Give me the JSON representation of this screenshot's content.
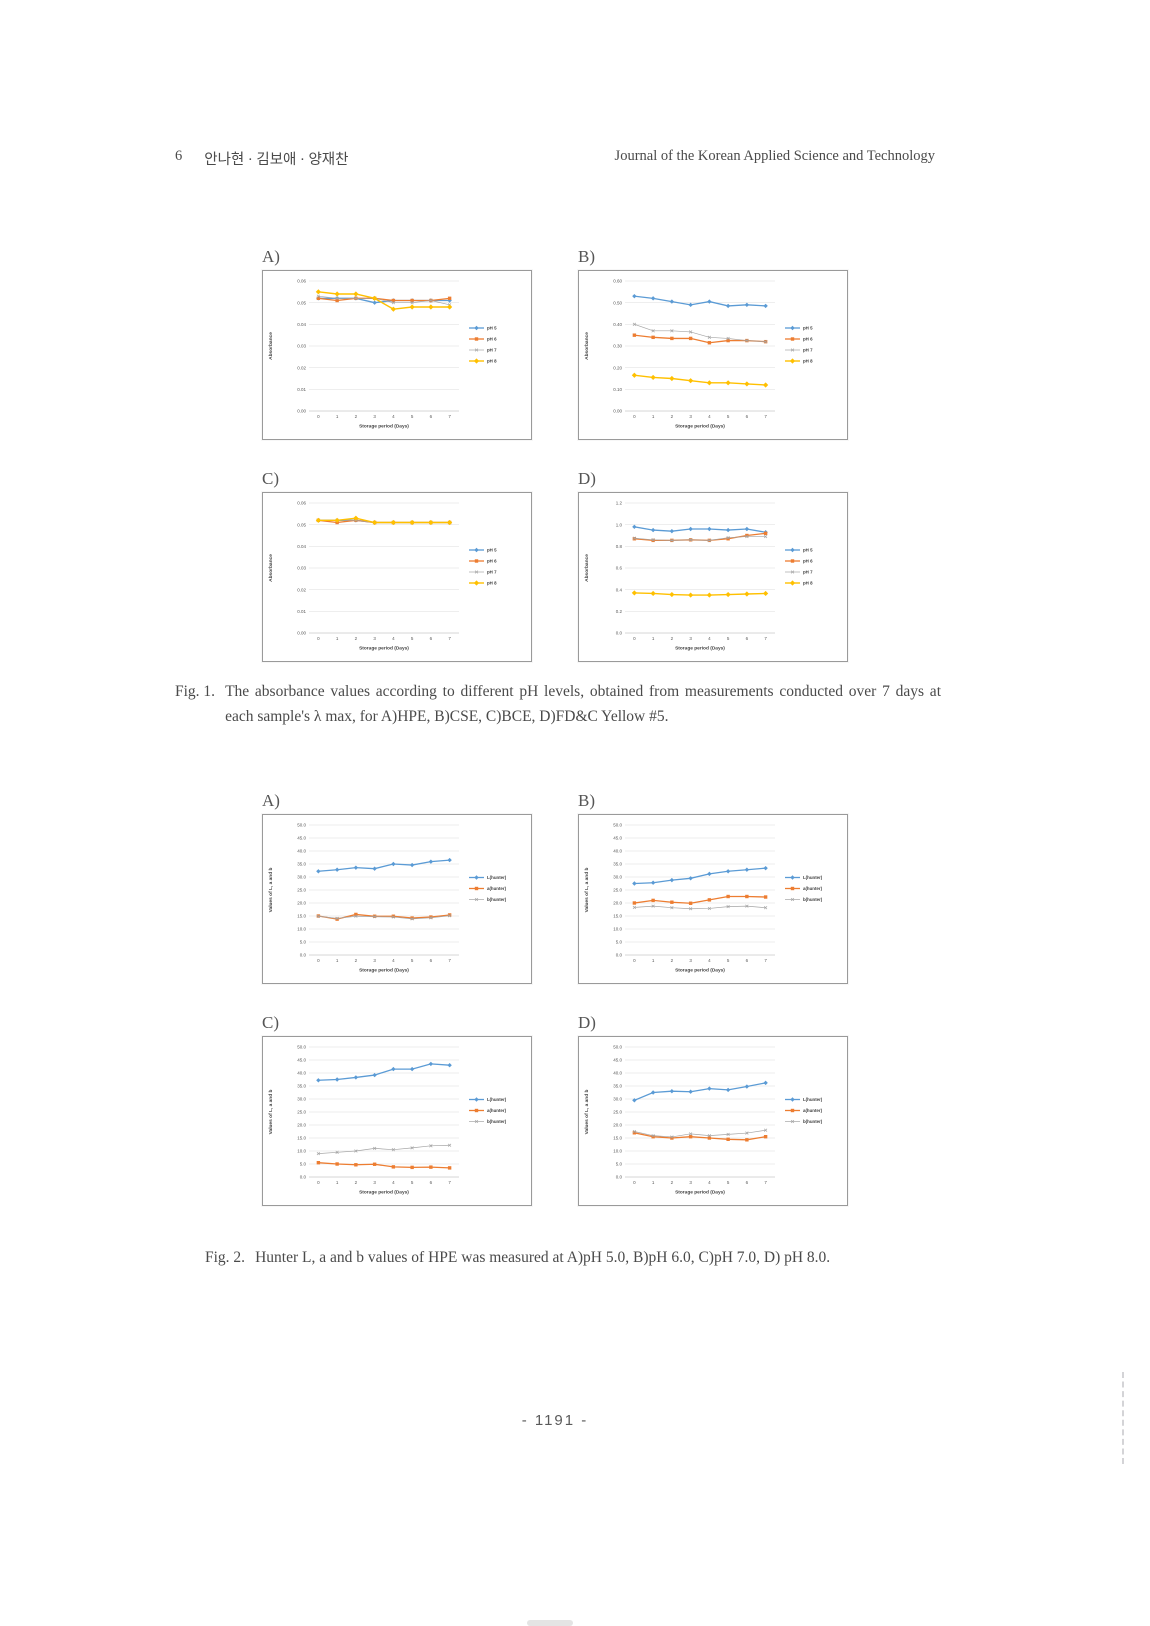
{
  "page": {
    "header": {
      "page_num": "6",
      "authors": "안나현 · 김보애 · 양재찬",
      "journal": "Journal of the Korean Applied Science and Technology"
    },
    "page_number": "- 1191 -"
  },
  "figure1": {
    "caption_label": "Fig. 1.",
    "caption_text": "The absorbance values according to different pH levels, obtained from measurements conducted over 7 days at each sample's λ max,  for A)HPE, B)CSE, C)BCE, D)FD&C Yellow #5."
  },
  "figure2": {
    "caption_label": "Fig. 2.",
    "caption_text": "Hunter L, a and b values of HPE was measured at A)pH 5.0, B)pH 6.0, C)pH 7.0, D) pH 8.0."
  },
  "chart_data": [
    {
      "id": "fig1-a",
      "panel_label": "A)",
      "type": "line",
      "x": [
        0,
        1,
        2,
        3,
        4,
        5,
        6,
        7
      ],
      "xlabel": "Storage period (Days)",
      "ylabel": "Absorbance",
      "ylim": [
        0,
        0.06
      ],
      "ytick_step": 0.01,
      "ytick_decimals": 2,
      "grid": true,
      "legend_position": "right",
      "series": [
        {
          "name": "pH 5",
          "color": "#5B9BD5",
          "marker": "diamond",
          "stroke_width": 1.3,
          "values": [
            0.052,
            0.052,
            0.052,
            0.05,
            0.051,
            0.051,
            0.051,
            0.051
          ]
        },
        {
          "name": "pH 6",
          "color": "#ED7D31",
          "marker": "square",
          "stroke_width": 1.3,
          "values": [
            0.052,
            0.051,
            0.052,
            0.052,
            0.051,
            0.051,
            0.051,
            0.052
          ]
        },
        {
          "name": "pH 7",
          "color": "#A5A5A5",
          "marker": "x",
          "stroke_width": 0.7,
          "values": [
            0.053,
            0.052,
            0.052,
            0.052,
            0.05,
            0.05,
            0.051,
            0.049
          ]
        },
        {
          "name": "pH 8",
          "color": "#FFC000",
          "marker": "diamond-lg",
          "stroke_width": 1.4,
          "values": [
            0.055,
            0.054,
            0.054,
            0.052,
            0.047,
            0.048,
            0.048,
            0.048
          ]
        }
      ]
    },
    {
      "id": "fig1-b",
      "panel_label": "B)",
      "type": "line",
      "x": [
        0,
        1,
        2,
        3,
        4,
        5,
        6,
        7
      ],
      "xlabel": "Storage period (Days)",
      "ylabel": "Absorbance",
      "ylim": [
        0,
        0.6
      ],
      "ytick_step": 0.1,
      "ytick_decimals": 2,
      "grid": true,
      "legend_position": "right",
      "series": [
        {
          "name": "pH 5",
          "color": "#5B9BD5",
          "marker": "diamond",
          "stroke_width": 1.3,
          "values": [
            0.53,
            0.52,
            0.505,
            0.49,
            0.505,
            0.485,
            0.49,
            0.485
          ]
        },
        {
          "name": "pH 6",
          "color": "#ED7D31",
          "marker": "square",
          "stroke_width": 1.3,
          "values": [
            0.35,
            0.34,
            0.335,
            0.335,
            0.315,
            0.325,
            0.325,
            0.32
          ]
        },
        {
          "name": "pH 7",
          "color": "#A5A5A5",
          "marker": "x",
          "stroke_width": 0.7,
          "values": [
            0.4,
            0.37,
            0.37,
            0.365,
            0.34,
            0.335,
            0.325,
            0.32
          ]
        },
        {
          "name": "pH 8",
          "color": "#FFC000",
          "marker": "diamond-lg",
          "stroke_width": 1.4,
          "values": [
            0.165,
            0.155,
            0.15,
            0.14,
            0.13,
            0.13,
            0.125,
            0.12
          ]
        }
      ]
    },
    {
      "id": "fig1-c",
      "panel_label": "C)",
      "type": "line",
      "x": [
        0,
        1,
        2,
        3,
        4,
        5,
        6,
        7
      ],
      "xlabel": "Storage period (Days)",
      "ylabel": "Absorbance",
      "ylim": [
        0,
        0.06
      ],
      "ytick_step": 0.01,
      "ytick_decimals": 2,
      "grid": true,
      "legend_position": "right",
      "series": [
        {
          "name": "pH 5",
          "color": "#5B9BD5",
          "marker": "diamond",
          "stroke_width": 1.3,
          "values": [
            0.052,
            0.052,
            0.052,
            0.051,
            0.051,
            0.051,
            0.051,
            0.051
          ]
        },
        {
          "name": "pH 6",
          "color": "#ED7D31",
          "marker": "square",
          "stroke_width": 1.3,
          "values": [
            0.052,
            0.051,
            0.052,
            0.051,
            0.051,
            0.051,
            0.051,
            0.051
          ]
        },
        {
          "name": "pH 7",
          "color": "#A5A5A5",
          "marker": "x",
          "stroke_width": 0.7,
          "values": [
            0.052,
            0.052,
            0.052,
            0.051,
            0.051,
            0.051,
            0.051,
            0.051
          ]
        },
        {
          "name": "pH 8",
          "color": "#FFC000",
          "marker": "diamond-lg",
          "stroke_width": 1.4,
          "values": [
            0.052,
            0.052,
            0.053,
            0.051,
            0.051,
            0.051,
            0.051,
            0.051
          ]
        }
      ]
    },
    {
      "id": "fig1-d",
      "panel_label": "D)",
      "type": "line",
      "x": [
        0,
        1,
        2,
        3,
        4,
        5,
        6,
        7
      ],
      "xlabel": "Storage period (Days)",
      "ylabel": "Absorbance",
      "ylim": [
        0,
        1.2
      ],
      "ytick_step": 0.2,
      "ytick_decimals": 1,
      "grid": true,
      "legend_position": "right",
      "series": [
        {
          "name": "pH 5",
          "color": "#5B9BD5",
          "marker": "diamond",
          "stroke_width": 1.3,
          "values": [
            0.98,
            0.95,
            0.94,
            0.96,
            0.96,
            0.95,
            0.96,
            0.93
          ]
        },
        {
          "name": "pH 6",
          "color": "#ED7D31",
          "marker": "square",
          "stroke_width": 1.3,
          "values": [
            0.87,
            0.855,
            0.855,
            0.86,
            0.855,
            0.87,
            0.9,
            0.92
          ]
        },
        {
          "name": "pH 7",
          "color": "#A5A5A5",
          "marker": "x",
          "stroke_width": 0.7,
          "values": [
            0.875,
            0.86,
            0.855,
            0.86,
            0.855,
            0.88,
            0.89,
            0.89
          ]
        },
        {
          "name": "pH 8",
          "color": "#FFC000",
          "marker": "diamond-lg",
          "stroke_width": 1.4,
          "values": [
            0.37,
            0.365,
            0.355,
            0.35,
            0.35,
            0.355,
            0.36,
            0.365
          ]
        }
      ]
    },
    {
      "id": "fig2-a",
      "panel_label": "A)",
      "type": "line",
      "x": [
        0,
        1,
        2,
        3,
        4,
        5,
        6,
        7
      ],
      "xlabel": "Storage period (Days)",
      "ylabel": "Values of L, a and b",
      "ylim": [
        0,
        50
      ],
      "ytick_step": 5,
      "ytick_decimals": 1,
      "grid": true,
      "legend_position": "right",
      "series": [
        {
          "name": "L(hunter)",
          "color": "#5B9BD5",
          "marker": "diamond",
          "stroke_width": 1.3,
          "values": [
            32.2,
            32.8,
            33.6,
            33.2,
            35.0,
            34.6,
            35.9,
            36.5
          ]
        },
        {
          "name": "a(hunter)",
          "color": "#ED7D31",
          "marker": "square",
          "stroke_width": 1.3,
          "values": [
            15.0,
            13.8,
            15.6,
            14.9,
            14.9,
            14.2,
            14.6,
            15.4
          ]
        },
        {
          "name": "b(hunter)",
          "color": "#A5A5A5",
          "marker": "x",
          "stroke_width": 0.7,
          "values": [
            14.9,
            14.1,
            14.9,
            14.7,
            14.6,
            13.9,
            14.3,
            15.1
          ]
        }
      ]
    },
    {
      "id": "fig2-b",
      "panel_label": "B)",
      "type": "line",
      "x": [
        0,
        1,
        2,
        3,
        4,
        5,
        6,
        7
      ],
      "xlabel": "Storage period (Days)",
      "ylabel": "Values of L, a and b",
      "ylim": [
        0,
        50
      ],
      "ytick_step": 5,
      "ytick_decimals": 1,
      "grid": true,
      "legend_position": "right",
      "series": [
        {
          "name": "L(hunter)",
          "color": "#5B9BD5",
          "marker": "diamond",
          "stroke_width": 1.3,
          "values": [
            27.5,
            27.8,
            28.8,
            29.5,
            31.2,
            32.2,
            32.8,
            33.4
          ]
        },
        {
          "name": "a(hunter)",
          "color": "#ED7D31",
          "marker": "square",
          "stroke_width": 1.3,
          "values": [
            20.0,
            21.0,
            20.3,
            19.9,
            21.2,
            22.5,
            22.5,
            22.3
          ]
        },
        {
          "name": "b(hunter)",
          "color": "#A5A5A5",
          "marker": "x",
          "stroke_width": 0.7,
          "values": [
            18.3,
            18.8,
            18.2,
            17.8,
            17.9,
            18.6,
            18.8,
            18.2
          ]
        }
      ]
    },
    {
      "id": "fig2-c",
      "panel_label": "C)",
      "type": "line",
      "x": [
        0,
        1,
        2,
        3,
        4,
        5,
        6,
        7
      ],
      "xlabel": "Storage period (Days)",
      "ylabel": "Values of L, a and b",
      "ylim": [
        0,
        50
      ],
      "ytick_step": 5,
      "ytick_decimals": 1,
      "grid": true,
      "legend_position": "right",
      "series": [
        {
          "name": "L(hunter)",
          "color": "#5B9BD5",
          "marker": "diamond",
          "stroke_width": 1.3,
          "values": [
            37.2,
            37.5,
            38.3,
            39.2,
            41.5,
            41.5,
            43.5,
            43.0
          ]
        },
        {
          "name": "a(hunter)",
          "color": "#ED7D31",
          "marker": "square",
          "stroke_width": 1.3,
          "values": [
            5.5,
            5.0,
            4.7,
            4.9,
            3.9,
            3.7,
            3.8,
            3.5
          ]
        },
        {
          "name": "b(hunter)",
          "color": "#A5A5A5",
          "marker": "x",
          "stroke_width": 0.7,
          "values": [
            9.0,
            9.5,
            10.0,
            11.0,
            10.5,
            11.2,
            12.0,
            12.2
          ]
        }
      ]
    },
    {
      "id": "fig2-d",
      "panel_label": "D)",
      "type": "line",
      "x": [
        0,
        1,
        2,
        3,
        4,
        5,
        6,
        7
      ],
      "xlabel": "Storage period (Days)",
      "ylabel": "Values of L, a and b",
      "ylim": [
        0,
        50
      ],
      "ytick_step": 5,
      "ytick_decimals": 1,
      "grid": true,
      "legend_position": "right",
      "series": [
        {
          "name": "L(hunter)",
          "color": "#5B9BD5",
          "marker": "diamond",
          "stroke_width": 1.3,
          "values": [
            29.5,
            32.5,
            33.0,
            32.8,
            34.0,
            33.5,
            34.8,
            36.2
          ]
        },
        {
          "name": "a(hunter)",
          "color": "#ED7D31",
          "marker": "square",
          "stroke_width": 1.3,
          "values": [
            17.0,
            15.5,
            15.0,
            15.5,
            15.0,
            14.5,
            14.3,
            15.5
          ]
        },
        {
          "name": "b(hunter)",
          "color": "#A5A5A5",
          "marker": "x",
          "stroke_width": 0.7,
          "values": [
            17.5,
            15.9,
            15.4,
            16.6,
            15.9,
            16.4,
            16.9,
            18.0
          ]
        }
      ]
    }
  ]
}
